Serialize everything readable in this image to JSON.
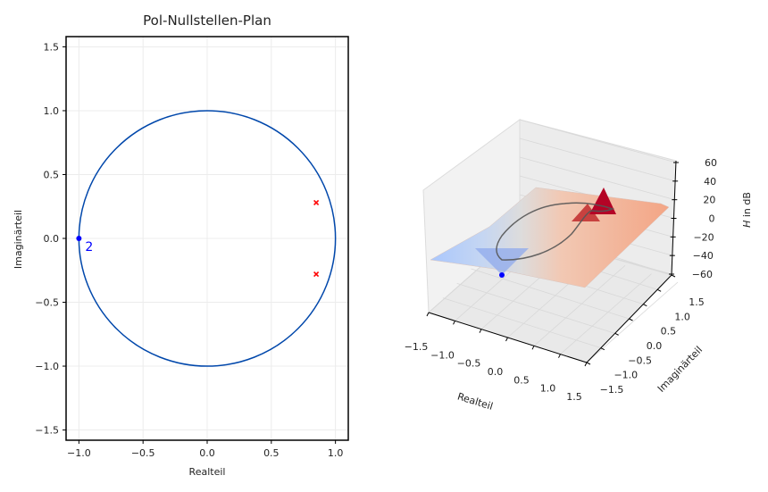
{
  "chart_data": [
    {
      "type": "scatter",
      "title": "Pol-Nullstellen-Plan",
      "xlabel": "Realteil",
      "ylabel": "Imaginärteil",
      "xlim": [
        -1.1,
        1.1
      ],
      "ylim": [
        -1.58,
        1.58
      ],
      "xticks": [
        "−1.0",
        "−0.5",
        "0.0",
        "0.5",
        "1.0"
      ],
      "yticks": [
        "−1.5",
        "−1.0",
        "−0.5",
        "0.0",
        "0.5",
        "1.0",
        "1.5"
      ],
      "grid": true,
      "unit_circle": {
        "radius": 1.0,
        "color": "#0047ab"
      },
      "zeros": [
        {
          "re": -1.0,
          "im": 0.0,
          "multiplicity": 2,
          "color": "#0000ff"
        }
      ],
      "zero_multiplicity_label": "2",
      "poles": [
        {
          "re": 0.85,
          "im": 0.28,
          "color": "#ff0000"
        },
        {
          "re": 0.85,
          "im": -0.28,
          "color": "#ff0000"
        }
      ]
    },
    {
      "type": "surface3d",
      "xlabel": "Realteil",
      "ylabel": "Imaginärteil",
      "zlabel": "H in dB",
      "zlabel_italic_part": "H",
      "zlabel_rest": " in dB",
      "xticks": [
        "−1.5",
        "−1.0",
        "−0.5",
        "0.0",
        "0.5",
        "1.0",
        "1.5"
      ],
      "yticks": [
        "−1.5",
        "−1.0",
        "−0.5",
        "0.0",
        "0.5",
        "1.0",
        "1.5"
      ],
      "zticks": [
        "60",
        "40",
        "20",
        "0",
        "−20",
        "−40",
        "−60"
      ],
      "xlim": [
        -1.5,
        1.5
      ],
      "ylim": [
        -1.5,
        1.5
      ],
      "zlim": [
        -60,
        60
      ],
      "colormap": "coolwarm",
      "colormap_low": "#3b4cc0",
      "colormap_high": "#b40426",
      "unit_circle_curve": true,
      "zero_marker": {
        "re": -1.0,
        "im": 0.0,
        "color": "#0000ff"
      },
      "pole_peaks": [
        {
          "re": 0.85,
          "im": 0.28
        },
        {
          "re": 0.85,
          "im": -0.28
        }
      ]
    }
  ]
}
